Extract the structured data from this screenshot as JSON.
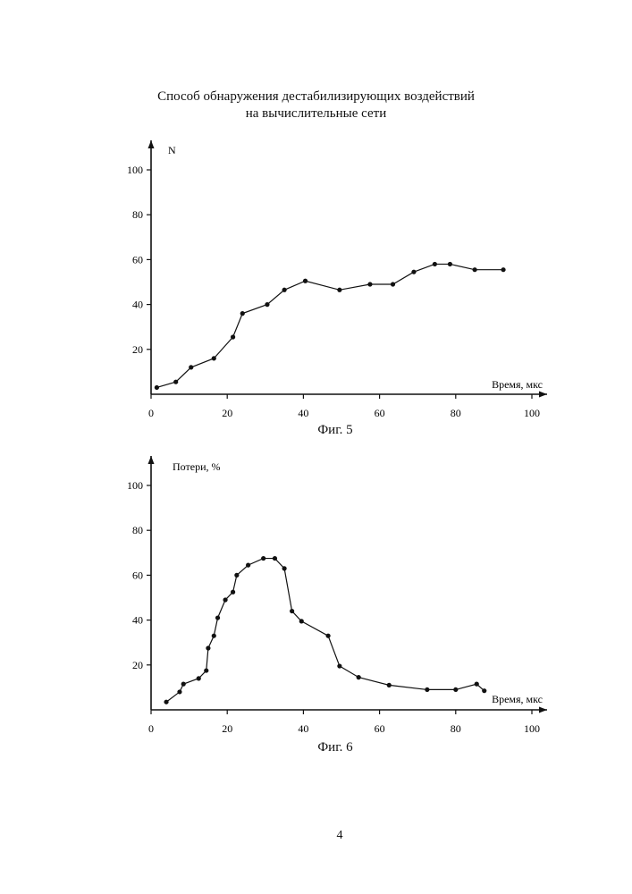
{
  "header": {
    "title_line1": "Способ обнаружения дестабилизирующих воздействий",
    "title_line2": "на вычислительные сети"
  },
  "figures": [
    {
      "caption": "Фиг. 5"
    },
    {
      "caption": "Фиг. 6"
    }
  ],
  "page_number": "4",
  "chart_data": [
    {
      "type": "line",
      "title": "",
      "xlabel": "Время, мкс",
      "ylabel": "N",
      "xlim": [
        0,
        100
      ],
      "ylim": [
        0,
        100
      ],
      "x_ticks": [
        "0",
        "20",
        "40",
        "60",
        "80",
        "100"
      ],
      "y_ticks": [
        "20",
        "40",
        "60",
        "80",
        "100"
      ],
      "grid": false,
      "series": [
        {
          "x": [
            1.5,
            6.5,
            10.5,
            16.5,
            21.5,
            24,
            30.5,
            35,
            40.5,
            49.5,
            57.5,
            63.5,
            69,
            74.5,
            78.5,
            85,
            92.5
          ],
          "y": [
            3,
            5.5,
            12,
            16,
            25.5,
            36,
            40,
            46.5,
            50.5,
            46.5,
            49,
            49,
            54.5,
            58,
            58,
            55.5,
            55.5
          ]
        }
      ]
    },
    {
      "type": "line",
      "title": "",
      "xlabel": "Время, мкс",
      "ylabel": "Потери, %",
      "xlim": [
        0,
        100
      ],
      "ylim": [
        0,
        100
      ],
      "x_ticks": [
        "0",
        "20",
        "40",
        "60",
        "80",
        "100"
      ],
      "y_ticks": [
        "20",
        "40",
        "60",
        "80",
        "100"
      ],
      "grid": false,
      "series": [
        {
          "x": [
            4,
            7.5,
            8.5,
            12.5,
            14.5,
            15,
            16.5,
            17.5,
            19.5,
            21.5,
            22.5,
            25.5,
            29.5,
            32.5,
            35,
            37,
            39.5,
            46.5,
            49.5,
            54.5,
            62.5,
            72.5,
            80,
            85.5,
            87.5
          ],
          "y": [
            3.5,
            8,
            11.5,
            14,
            17.5,
            27.5,
            33,
            41,
            49,
            52.5,
            60,
            64.5,
            67.5,
            67.5,
            63,
            44,
            39.5,
            33,
            19.5,
            14.5,
            11,
            9,
            9,
            11.5,
            8.5
          ]
        }
      ]
    }
  ]
}
